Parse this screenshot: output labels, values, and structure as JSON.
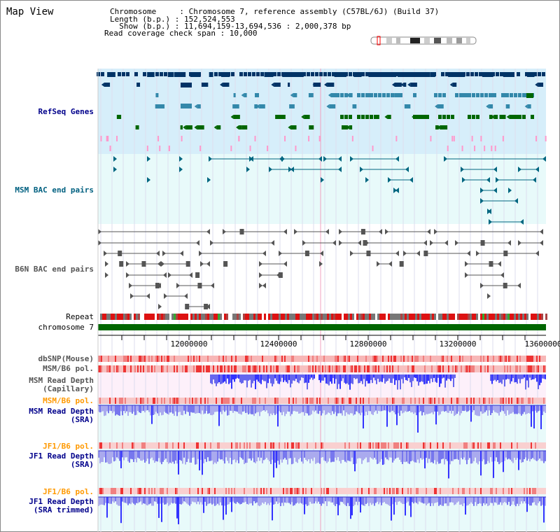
{
  "app": {
    "title": "Map View"
  },
  "info": {
    "chromosome_label": "Chromosome     : Chromosome 7, reference assembly (C57BL/6J) (Build 37)",
    "length_label": "Length (b.p.) : 152,524,553",
    "show_label": "  Show (b.p.) : 11,694,159-13,694,536 : 2,000,378 bp",
    "coverage_label": "Read coverage check span : 10,000"
  },
  "tracks": {
    "refseq": "RefSeq Genes",
    "msm_bac": "MSM BAC end pairs",
    "b6n_bac": "B6N BAC end pairs",
    "repeat": "Repeat",
    "chromosome": "chromosome 7",
    "dbsnp": "dbSNP(Mouse)",
    "msm_b6_pol_1": "MSM/B6 pol.",
    "msm_depth_cap": "MSM Read Depth\n(Capillary)",
    "msm_b6_pol_2": "MSM/B6 pol.",
    "msm_depth_sra": "MSM Read Depth\n(SRA)",
    "jf1_b6_pol_1": "JF1/B6 pol.",
    "jf1_depth_sra": "JF1 Read Depth\n(SRA)",
    "jf1_b6_pol_2": "JF1/B6 pol.",
    "jf1_depth_trim": "JF1 Read Depth\n(SRA trimmed)"
  },
  "axis": {
    "ticks": [
      "12000000",
      "12400000",
      "12800000",
      "13200000",
      "13600000"
    ]
  },
  "colors": {
    "refseq_bg": "#d6eefa",
    "bac_bg": "#e8fafa",
    "gene_dark": "#003366",
    "gene_mid": "#3388aa",
    "gene_green": "#006600",
    "pink": "#ff99cc",
    "teal": "#006680",
    "gray": "#555555",
    "chrom": "#006600",
    "depth_blue": "#3333ff",
    "depth_light": "#aaaaee"
  }
}
